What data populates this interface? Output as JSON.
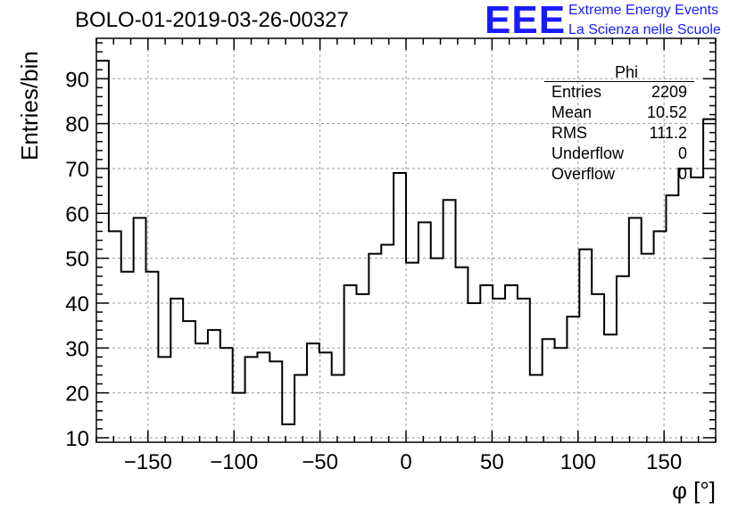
{
  "header": {
    "title": "BOLO-01-2019-03-26-00327",
    "logo": "EEE",
    "logo_line1": "Extreme Energy Events",
    "logo_line2": "La Scienza nelle Scuole"
  },
  "stats_box": {
    "name": "Phi",
    "rows": [
      {
        "label": "Entries",
        "value": "2209"
      },
      {
        "label": "Mean",
        "value": "10.52"
      },
      {
        "label": "RMS",
        "value": "111.2"
      },
      {
        "label": "Underflow",
        "value": "0"
      },
      {
        "label": "Overflow",
        "value": "0"
      }
    ]
  },
  "colors": {
    "logo": "#1a1aff",
    "line": "#000000",
    "grid": "#9a9a9a"
  },
  "chart_data": {
    "type": "bar",
    "style": "step-histogram",
    "title": "BOLO-01-2019-03-26-00327",
    "xlabel": "φ [°]",
    "ylabel": "Entries/bin",
    "xlim": [
      -180,
      180
    ],
    "ylim": [
      9,
      99
    ],
    "bin_width": 7.2,
    "xticks": [
      -150,
      -100,
      -50,
      0,
      50,
      100,
      150
    ],
    "yticks": [
      10,
      20,
      30,
      40,
      50,
      60,
      70,
      80,
      90
    ],
    "grid": true,
    "values": [
      94,
      56,
      47,
      59,
      47,
      28,
      41,
      36,
      31,
      34,
      30,
      20,
      28,
      29,
      27,
      13,
      24,
      31,
      29,
      24,
      44,
      42,
      51,
      53,
      69,
      49,
      58,
      50,
      63,
      48,
      40,
      44,
      41,
      44,
      41,
      24,
      32,
      30,
      37,
      52,
      42,
      33,
      46,
      59,
      51,
      56,
      64,
      70,
      68,
      81
    ]
  }
}
